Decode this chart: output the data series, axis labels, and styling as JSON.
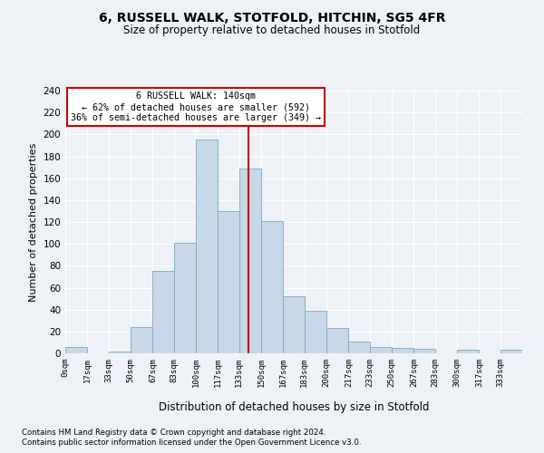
{
  "title": "6, RUSSELL WALK, STOTFOLD, HITCHIN, SG5 4FR",
  "subtitle": "Size of property relative to detached houses in Stotfold",
  "xlabel": "Distribution of detached houses by size in Stotfold",
  "ylabel": "Number of detached properties",
  "bar_color": "#c8d8e8",
  "bar_edge_color": "#7aaabb",
  "bar_labels": [
    "0sqm",
    "17sqm",
    "33sqm",
    "50sqm",
    "67sqm",
    "83sqm",
    "100sqm",
    "117sqm",
    "133sqm",
    "150sqm",
    "167sqm",
    "183sqm",
    "200sqm",
    "217sqm",
    "233sqm",
    "250sqm",
    "267sqm",
    "283sqm",
    "300sqm",
    "317sqm",
    "333sqm"
  ],
  "bar_values": [
    6,
    0,
    2,
    24,
    75,
    101,
    195,
    130,
    169,
    121,
    52,
    39,
    23,
    11,
    6,
    5,
    4,
    0,
    3,
    0,
    3
  ],
  "bin_edges": [
    0,
    17,
    33,
    50,
    67,
    83,
    100,
    117,
    133,
    150,
    167,
    183,
    200,
    217,
    233,
    250,
    267,
    283,
    300,
    317,
    333,
    350
  ],
  "property_line_x": 140,
  "ylim": [
    0,
    240
  ],
  "yticks": [
    0,
    20,
    40,
    60,
    80,
    100,
    120,
    140,
    160,
    180,
    200,
    220,
    240
  ],
  "annotation_title": "6 RUSSELL WALK: 140sqm",
  "annotation_line1": "← 62% of detached houses are smaller (592)",
  "annotation_line2": "36% of semi-detached houses are larger (349) →",
  "line_color": "#cc0000",
  "footnote1": "Contains HM Land Registry data © Crown copyright and database right 2024.",
  "footnote2": "Contains public sector information licensed under the Open Government Licence v3.0.",
  "bg_color": "#eef2f7",
  "grid_color": "#ffffff"
}
